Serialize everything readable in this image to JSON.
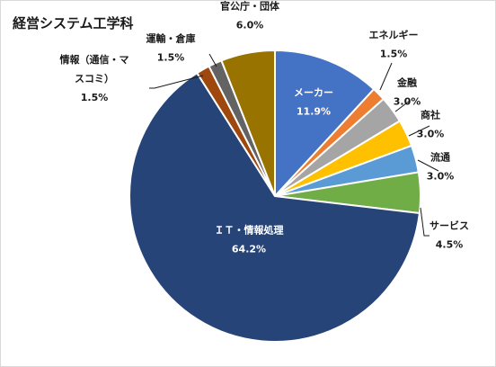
{
  "chart_data": {
    "type": "pie",
    "title": "経営システム工学科",
    "slices": [
      {
        "label": "メーカー",
        "value": 11.9,
        "value_text": "11.9%",
        "color": "#4472C4"
      },
      {
        "label": "エネルギー",
        "value": 1.5,
        "value_text": "1.5%",
        "color": "#ED7D31"
      },
      {
        "label": "金融",
        "value": 3.0,
        "value_text": "3.0%",
        "color": "#A5A5A5"
      },
      {
        "label": "商社",
        "value": 3.0,
        "value_text": "3.0%",
        "color": "#FFC000"
      },
      {
        "label": "流通",
        "value": 3.0,
        "value_text": "3.0%",
        "color": "#5B9BD5"
      },
      {
        "label": "サービス",
        "value": 4.5,
        "value_text": "4.5%",
        "color": "#70AD47"
      },
      {
        "label": "ＩＴ・情報処理",
        "value": 64.2,
        "value_text": "64.2%",
        "color": "#264478"
      },
      {
        "label": "情報（通信・マスコミ）",
        "label_lines": [
          "情報（通信・マ",
          "スコミ）"
        ],
        "value": 1.5,
        "value_text": "1.5%",
        "color": "#9E480E"
      },
      {
        "label": "運輸・倉庫",
        "value": 1.5,
        "value_text": "1.5%",
        "color": "#636363"
      },
      {
        "label": "官公庁・団体",
        "value": 6.0,
        "value_text": "6.0%",
        "color": "#997300"
      }
    ]
  }
}
